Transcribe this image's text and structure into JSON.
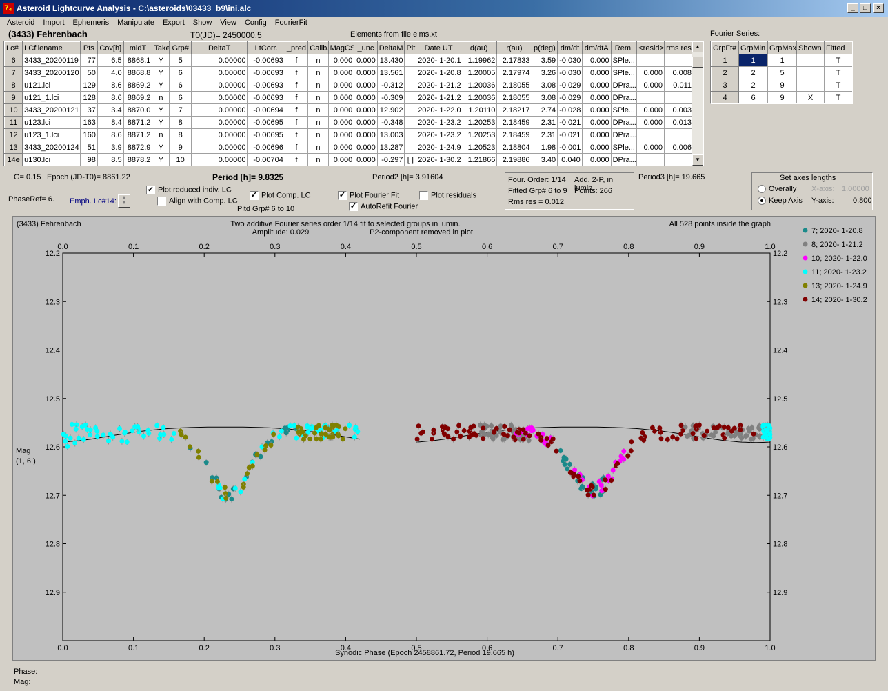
{
  "window": {
    "title": "Asteroid Lightcurve Analysis - C:\\asteroids\\03433_b9\\ini.alc",
    "icon_glyph": "7₄"
  },
  "menu": [
    "Asteroid",
    "Import",
    "Ephemeris",
    "Manipulate",
    "Export",
    "Show",
    "View",
    "Config",
    "FourierFit"
  ],
  "header": {
    "asteroid": "(3433) Fehrenbach",
    "t0": "T0(JD)= 2450000.5",
    "elements": "Elements from file elms.xt",
    "fourier_title": "Fourier Series:"
  },
  "lc_table": {
    "columns": [
      "Lc#",
      "LCfilename",
      "Pts",
      "Cov[h]",
      "midT",
      "Take",
      "Grp#",
      "DeltaT",
      "LtCorr.",
      "_pred.",
      "Calib.",
      "MagCS",
      "_unc",
      "DeltaM",
      "Plt",
      "Date UT",
      "d(au)",
      "r(au)",
      "p(deg)",
      "dm/dt",
      "dm/dtA",
      "Rem.",
      "<resid>",
      "rms res"
    ],
    "rows": [
      [
        "6",
        "3433_20200119",
        "77",
        "6.5",
        "8868.1",
        "Y",
        "5",
        "0.00000",
        "-0.00693",
        "f",
        "n",
        "0.000",
        "0.000",
        "13.430",
        "",
        "2020- 1-20.1",
        "1.19962",
        "2.17833",
        "3.59",
        "-0.030",
        "0.000",
        "SPle...",
        "",
        ""
      ],
      [
        "7",
        "3433_20200120",
        "50",
        "4.0",
        "8868.8",
        "Y",
        "6",
        "0.00000",
        "-0.00693",
        "f",
        "n",
        "0.000",
        "0.000",
        "13.561",
        "",
        "2020- 1-20.8",
        "1.20005",
        "2.17974",
        "3.26",
        "-0.030",
        "0.000",
        "SPle...",
        "0.000",
        "0.008"
      ],
      [
        "8",
        "u121.lci",
        "129",
        "8.6",
        "8869.2",
        "Y",
        "6",
        "0.00000",
        "-0.00693",
        "f",
        "n",
        "0.000",
        "0.000",
        "-0.312",
        "",
        "2020- 1-21.2",
        "1.20036",
        "2.18055",
        "3.08",
        "-0.029",
        "0.000",
        "DPra...",
        "0.000",
        "0.011"
      ],
      [
        "9",
        "u121_1.lci",
        "128",
        "8.6",
        "8869.2",
        "n",
        "6",
        "0.00000",
        "-0.00693",
        "f",
        "n",
        "0.000",
        "0.000",
        "-0.309",
        "",
        "2020- 1-21.2",
        "1.20036",
        "2.18055",
        "3.08",
        "-0.029",
        "0.000",
        "DPra...",
        "",
        ""
      ],
      [
        "10",
        "3433_20200121",
        "37",
        "3.4",
        "8870.0",
        "Y",
        "7",
        "0.00000",
        "-0.00694",
        "f",
        "n",
        "0.000",
        "0.000",
        "12.902",
        "",
        "2020- 1-22.0",
        "1.20110",
        "2.18217",
        "2.74",
        "-0.028",
        "0.000",
        "SPle...",
        "0.000",
        "0.003"
      ],
      [
        "11",
        "u123.lci",
        "163",
        "8.4",
        "8871.2",
        "Y",
        "8",
        "0.00000",
        "-0.00695",
        "f",
        "n",
        "0.000",
        "0.000",
        "-0.348",
        "",
        "2020- 1-23.2",
        "1.20253",
        "2.18459",
        "2.31",
        "-0.021",
        "0.000",
        "DPra...",
        "0.000",
        "0.013"
      ],
      [
        "12",
        "u123_1.lci",
        "160",
        "8.6",
        "8871.2",
        "n",
        "8",
        "0.00000",
        "-0.00695",
        "f",
        "n",
        "0.000",
        "0.000",
        "13.003",
        "",
        "2020- 1-23.2",
        "1.20253",
        "2.18459",
        "2.31",
        "-0.021",
        "0.000",
        "DPra...",
        "",
        ""
      ],
      [
        "13",
        "3433_20200124",
        "51",
        "3.9",
        "8872.9",
        "Y",
        "9",
        "0.00000",
        "-0.00696",
        "f",
        "n",
        "0.000",
        "0.000",
        "13.287",
        "",
        "2020- 1-24.9",
        "1.20523",
        "2.18804",
        "1.98",
        "-0.001",
        "0.000",
        "SPle...",
        "0.000",
        "0.006"
      ],
      [
        "14e",
        "u130.lci",
        "98",
        "8.5",
        "8878.2",
        "Y",
        "10",
        "0.00000",
        "-0.00704",
        "f",
        "n",
        "0.000",
        "0.000",
        "-0.297",
        "[ ]",
        "2020- 1-30.2",
        "1.21866",
        "2.19886",
        "3.40",
        "0.040",
        "0.000",
        "DPra...",
        "",
        ""
      ]
    ]
  },
  "fourier_table": {
    "columns": [
      "GrpFt#",
      "GrpMin",
      "GrpMax",
      "Shown",
      "Fitted"
    ],
    "rows": [
      [
        "1",
        "1",
        "1",
        "",
        "T"
      ],
      [
        "2",
        "2",
        "5",
        "",
        "T"
      ],
      [
        "3",
        "2",
        "9",
        "",
        "T"
      ],
      [
        "4",
        "6",
        "9",
        "X",
        "T"
      ]
    ]
  },
  "controls": {
    "g": "G= 0.15",
    "epoch": "Epoch (JD-T0)= 8861.22",
    "period": "Period [h]= 9.8325",
    "period2": "Period2 [h]= 3.91604",
    "period3": "Period3 [h]= 19.665",
    "phaseref": "PhaseRef= 6.",
    "emph": "Emph. Lc#14:",
    "plot_reduced": "Plot reduced indiv. LC",
    "align_comp": "Align with Comp. LC",
    "plot_comp": "Plot Comp. LC",
    "pltd_grp": "Pltd Grp#  6  to  10",
    "plot_fourier": "Plot Fourier Fit",
    "autorefit": "AutoRefit Fourier",
    "plot_resid": "Plot residuals",
    "four_order": "Four. Order:  1/14",
    "add2p": "Add. 2-P, in lumin.",
    "fitted_grp": "Fitted Grp# 6 to 9",
    "points": "Points: 266",
    "rms": "Rms res      = 0.012",
    "axes_title": "Set axes lengths",
    "overally": "Overally",
    "keep_axis": "Keep Axis",
    "xaxis_label": "X-axis:",
    "xaxis_val": "1.00000",
    "yaxis_label": "Y-axis:",
    "yaxis_val": "0.800"
  },
  "chart_data": {
    "type": "scatter",
    "title": "Two additive Fourier series order 1/14 fit to selected groups in lumin.",
    "subtitle": "Amplitude: 0.029",
    "subtitle2": "P2-component removed in plot",
    "corner_left": "(3433) Fehrenbach",
    "corner_right": "All 528 points inside the graph",
    "xlabel": "Synodic Phase (Epoch 2458861.72, Period 19.665 h)",
    "ylabel": "Mag",
    "ylabel2": "(1, 6.)",
    "xlim": [
      0,
      1
    ],
    "ylim": [
      12.2,
      13.0
    ],
    "y_inverted": true,
    "xticks": [
      "0.0",
      "0.1",
      "0.2",
      "0.3",
      "0.4",
      "0.5",
      "0.6",
      "0.7",
      "0.8",
      "0.9",
      "1.0"
    ],
    "yticks": [
      "12.2",
      "12.3",
      "12.4",
      "12.5",
      "12.6",
      "12.7",
      "12.8",
      "12.9"
    ],
    "series": [
      {
        "name": "7; 2020- 1-20.8",
        "color": "#1a8a8a"
      },
      {
        "name": "8; 2020- 1-21.2",
        "color": "#808080"
      },
      {
        "name": "10; 2020- 1-22.0",
        "color": "#ff00ff"
      },
      {
        "name": "11; 2020- 1-23.2",
        "color": "#00ffff"
      },
      {
        "name": "13; 2020- 1-24.9",
        "color": "#808000"
      },
      {
        "name": "14; 2020- 1-30.2",
        "color": "#800000"
      }
    ]
  },
  "status": {
    "phase": "Phase:",
    "mag": "Mag:"
  }
}
